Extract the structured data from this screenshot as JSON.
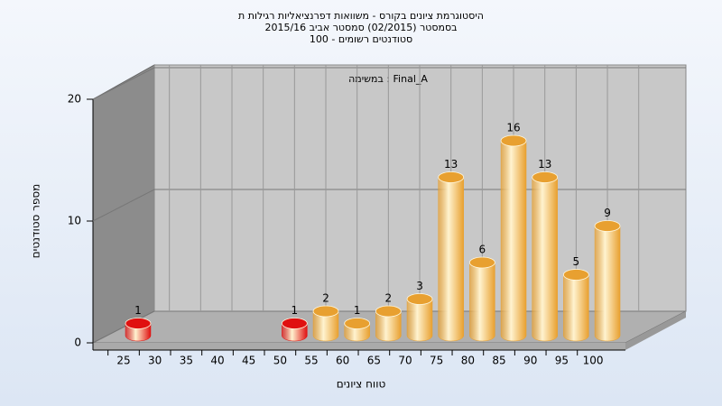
{
  "chart_data": {
    "type": "bar",
    "title": [
      "היסטוגרמת ציונים בקורס - משוואות דפרנציאליות רגילות ת",
      "בסמסטר  (02/2015)  סמסטר אביב 2015/16",
      "סטודנטים רשומים - 100"
    ],
    "annotation": "במשימה : Final_A",
    "x_label": "טווח ציונים",
    "y_label": "מספר סטודנטים",
    "categories": [
      "25",
      "30",
      "35",
      "40",
      "45",
      "50",
      "55",
      "60",
      "65",
      "70",
      "75",
      "80",
      "85",
      "90",
      "95",
      "100"
    ],
    "values": [
      1,
      0,
      0,
      0,
      0,
      1,
      2,
      1,
      2,
      3,
      13,
      6,
      16,
      13,
      5,
      9
    ],
    "colors": [
      "#e01010",
      "#e01010",
      "#e01010",
      "#e01010",
      "#e01010",
      "#e01010",
      "#e8a030",
      "#e8a030",
      "#e8a030",
      "#e8a030",
      "#e8a030",
      "#e8a030",
      "#e8a030",
      "#e8a030",
      "#e8a030",
      "#e8a030"
    ],
    "ylim": [
      0,
      20
    ],
    "yticks": [
      0,
      10,
      20
    ],
    "grid": true
  }
}
